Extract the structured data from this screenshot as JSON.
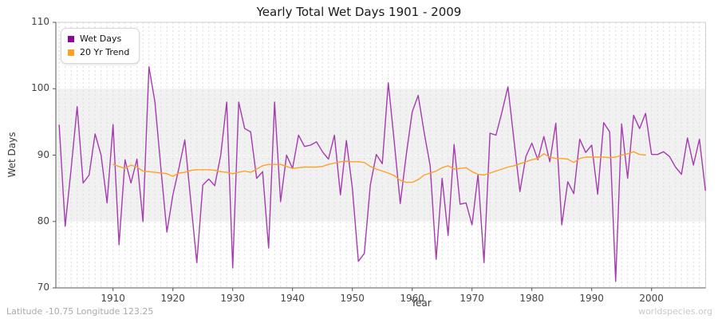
{
  "title": "Yearly Total Wet Days 1901 - 2009",
  "footer": {
    "left": "Latitude -10.75 Longitude 123.25",
    "right": "worldspecies.org"
  },
  "legend": [
    {
      "label": "Wet Days",
      "color": "#8F03A0"
    },
    {
      "label": "20 Yr Trend",
      "color": "#FFA024"
    }
  ],
  "axes": {
    "xlabel": "Year",
    "ylabel": "Wet Days",
    "yticks": [
      110,
      100,
      90,
      80,
      70
    ],
    "xticks": [
      1910,
      1920,
      1930,
      1940,
      1950,
      1960,
      1970,
      1980,
      1990,
      2000
    ]
  },
  "colors": {
    "wet_days_line": "#A43BAE",
    "trend_line": "#FFA129",
    "band": "#F1F1F2",
    "grid": "#DCDCDC",
    "inner_grid": "#FFFFFF",
    "spine": "#555555",
    "border": "#CFCFCF"
  },
  "chart_data": {
    "type": "line",
    "title": "Yearly Total Wet Days 1901 - 2009",
    "xlabel": "Year",
    "ylabel": "Wet Days",
    "xlim": [
      1901,
      2009
    ],
    "ylim": [
      70,
      110
    ],
    "shaded_band": [
      80,
      100
    ],
    "grid": "vertical-dashed-per-year",
    "legend_position": "top-left",
    "series": [
      {
        "name": "Wet Days",
        "x_start": 1901,
        "x_end": 2009,
        "values": [
          94.5,
          79.3,
          88,
          97.3,
          85.8,
          87,
          93.2,
          90,
          82.8,
          94.6,
          76.5,
          89.3,
          85.8,
          89.4,
          80,
          103.3,
          98,
          88,
          78.4,
          84,
          88,
          92.3,
          83,
          73.8,
          85.5,
          86.4,
          85.4,
          90,
          98,
          73,
          98,
          94,
          93.5,
          86.5,
          87.5,
          76,
          98,
          83,
          90,
          88,
          93,
          91.3,
          91.5,
          92,
          90.5,
          89.4,
          93,
          84,
          92.2,
          85,
          74,
          75.2,
          85.5,
          90.1,
          88.7,
          100.9,
          92,
          82.7,
          90,
          96.5,
          99,
          93.4,
          88.4,
          74.3,
          86.5,
          77.9,
          91.6,
          82.6,
          82.8,
          79.5,
          87.1,
          73.8,
          93.3,
          93,
          96.5,
          100.3,
          92.3,
          84.5,
          89.8,
          91.8,
          89.3,
          92.8,
          89,
          94.8,
          79.5,
          86,
          84.2,
          92.4,
          90.4,
          91.5,
          84.1,
          94.9,
          93.5,
          71,
          94.7,
          86.5,
          96,
          94,
          96.3,
          90.1,
          90.1,
          90.5,
          89.8,
          88.2,
          87.1,
          92.6,
          88.5,
          92.4,
          84.7
        ]
      },
      {
        "name": "20 Yr Trend",
        "x_start": 1910,
        "x_end": 1999,
        "values": [
          88.6,
          88.3,
          88.0,
          88.5,
          88.2,
          87.6,
          87.5,
          87.4,
          87.3,
          87.2,
          86.8,
          87.3,
          87.4,
          87.7,
          87.8,
          87.8,
          87.8,
          87.7,
          87.5,
          87.4,
          87.2,
          87.4,
          87.6,
          87.4,
          87.9,
          88.4,
          88.6,
          88.6,
          88.6,
          88.3,
          88.0,
          88.1,
          88.2,
          88.2,
          88.2,
          88.3,
          88.6,
          88.8,
          89.0,
          89.1,
          89.0,
          89.0,
          88.9,
          88.3,
          87.9,
          87.6,
          87.3,
          86.9,
          86.2,
          85.9,
          85.9,
          86.3,
          87.0,
          87.3,
          87.6,
          88.1,
          88.4,
          87.9,
          88.0,
          88.1,
          87.5,
          87.1,
          87.0,
          87.3,
          87.6,
          87.9,
          88.2,
          88.4,
          88.7,
          89.0,
          89.3,
          89.5,
          90.2,
          89.7,
          89.5,
          89.5,
          89.4,
          88.9,
          89.5,
          89.7,
          89.7,
          89.7,
          89.7,
          89.6,
          89.7,
          90.0,
          90.2,
          90.5,
          90.1,
          90.0
        ]
      }
    ]
  }
}
